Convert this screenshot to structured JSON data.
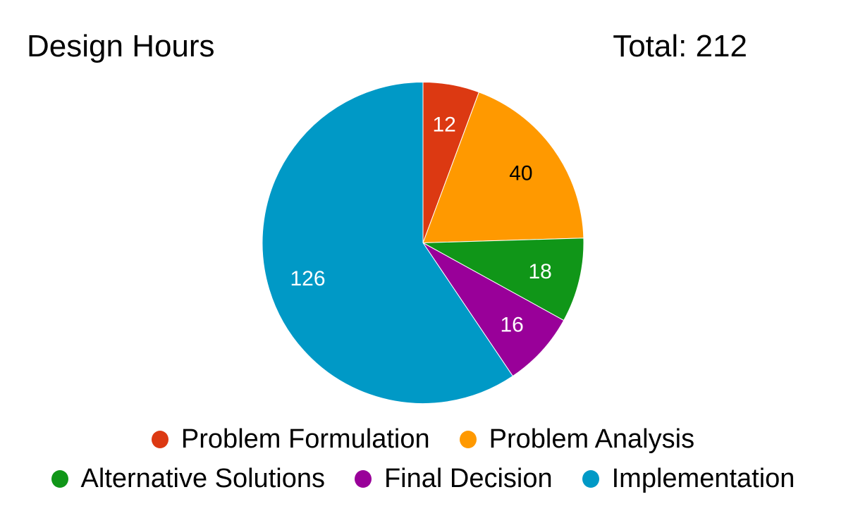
{
  "header": {
    "title": "Design Hours",
    "total_label": "Total: 212"
  },
  "chart_data": {
    "type": "pie",
    "title": "Design Hours",
    "total": 212,
    "categories": [
      "Problem Formulation",
      "Problem Analysis",
      "Alternative Solutions",
      "Final Decision",
      "Implementation"
    ],
    "values": [
      12,
      40,
      18,
      16,
      126
    ],
    "series": [
      {
        "name": "Problem Formulation",
        "value": 12,
        "color": "#dc3912",
        "value_label_color": "#ffffff"
      },
      {
        "name": "Problem Analysis",
        "value": 40,
        "color": "#ff9900",
        "value_label_color": "#000000"
      },
      {
        "name": "Alternative Solutions",
        "value": 18,
        "color": "#109618",
        "value_label_color": "#ffffff"
      },
      {
        "name": "Final Decision",
        "value": 16,
        "color": "#990099",
        "value_label_color": "#ffffff"
      },
      {
        "name": "Implementation",
        "value": 126,
        "color": "#0099c6",
        "value_label_color": "#ffffff"
      }
    ],
    "start_angle_deg": 0,
    "direction": "clockwise",
    "value_labels": "inside",
    "legend_position": "bottom",
    "background_color": "#ffffff",
    "slice_border_color": "#ffffff"
  }
}
